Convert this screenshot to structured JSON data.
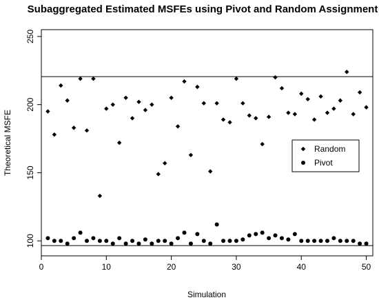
{
  "chart_data": {
    "type": "scatter",
    "title": "Subaggregated Estimated MSFEs using Pivot and Random Assignment",
    "xlabel": "Simulation",
    "ylabel": "Theoretical MSFE",
    "xlim": [
      0,
      51
    ],
    "ylim": [
      89,
      255
    ],
    "xticks": [
      0,
      10,
      20,
      30,
      40,
      50
    ],
    "yticks": [
      100,
      150,
      200,
      250
    ],
    "hlines": [
      220.5,
      96.5
    ],
    "legend_position": "right",
    "grid": false,
    "series": [
      {
        "name": "Random",
        "marker": "diamond",
        "x": [
          1,
          2,
          3,
          4,
          5,
          6,
          7,
          8,
          9,
          10,
          11,
          12,
          13,
          14,
          15,
          16,
          17,
          18,
          19,
          20,
          21,
          22,
          23,
          24,
          25,
          26,
          27,
          28,
          29,
          30,
          31,
          32,
          33,
          34,
          35,
          36,
          37,
          38,
          39,
          40,
          41,
          42,
          43,
          44,
          45,
          46,
          47,
          48,
          49,
          50
        ],
        "y": [
          195,
          178,
          214,
          203,
          183,
          219,
          181,
          219,
          133,
          197,
          200,
          172,
          205,
          190,
          202,
          196,
          200,
          149,
          157,
          205,
          184,
          217,
          163,
          213,
          201,
          151,
          201,
          189,
          187,
          219,
          201,
          192,
          190,
          171,
          191,
          220,
          212,
          194,
          193,
          208,
          204,
          189,
          206,
          194,
          197,
          203,
          224,
          193,
          209,
          198
        ]
      },
      {
        "name": "Pivot",
        "marker": "circle",
        "x": [
          1,
          2,
          3,
          4,
          5,
          6,
          7,
          8,
          9,
          10,
          11,
          12,
          13,
          14,
          15,
          16,
          17,
          18,
          19,
          20,
          21,
          22,
          23,
          24,
          25,
          26,
          27,
          28,
          29,
          30,
          31,
          32,
          33,
          34,
          35,
          36,
          37,
          38,
          39,
          40,
          41,
          42,
          43,
          44,
          45,
          46,
          47,
          48,
          49,
          50
        ],
        "y": [
          102,
          100,
          100,
          98,
          102,
          106,
          100,
          102,
          100,
          100,
          98,
          102,
          98,
          100,
          98,
          101,
          98,
          100,
          100,
          98,
          102,
          106,
          98,
          105,
          100,
          98,
          112,
          100,
          100,
          100,
          101,
          104,
          105,
          106,
          102,
          104,
          102,
          101,
          105,
          100,
          100,
          100,
          100,
          100,
          102,
          100,
          100,
          100,
          98,
          98
        ]
      }
    ]
  }
}
